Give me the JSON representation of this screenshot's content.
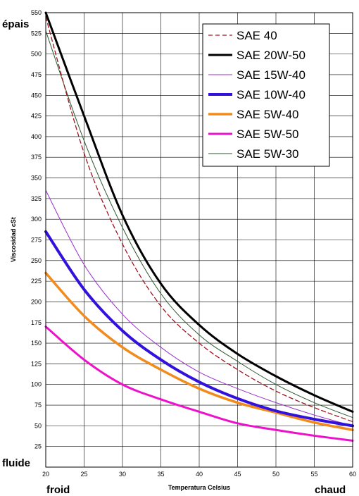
{
  "annotations": {
    "top_left": "épais",
    "bottom_left": "fluide",
    "x_left": "froid",
    "x_right": "chaud"
  },
  "chart_data": {
    "type": "line",
    "title": "",
    "xlabel": "Temperatura Celsius",
    "ylabel": "Viscosidad cSt",
    "xlim": [
      20,
      60
    ],
    "ylim": [
      0,
      550
    ],
    "xticks": [
      20,
      25,
      30,
      35,
      40,
      45,
      50,
      55,
      60
    ],
    "yticks": [
      25,
      50,
      75,
      100,
      125,
      150,
      175,
      200,
      225,
      250,
      275,
      300,
      325,
      350,
      375,
      400,
      425,
      450,
      475,
      500,
      525,
      550
    ],
    "grid": true,
    "legend_position": "top-right",
    "x": [
      20,
      25,
      30,
      35,
      40,
      45,
      50,
      55,
      60
    ],
    "series": [
      {
        "name": "SAE 40",
        "color": "#a0141e",
        "style": "dashed",
        "width": 1.3,
        "values": [
          545,
          380,
          270,
          195,
          150,
          118,
          92,
          72,
          55
        ]
      },
      {
        "name": "SAE 20W-50",
        "color": "#000000",
        "style": "solid",
        "width": 3,
        "values": [
          550,
          425,
          305,
          222,
          172,
          137,
          110,
          87,
          67
        ]
      },
      {
        "name": "SAE 15W-40",
        "color": "#9932cc",
        "style": "solid",
        "width": 1,
        "values": [
          335,
          245,
          185,
          145,
          115,
          95,
          78,
          63,
          50
        ]
      },
      {
        "name": "SAE 10W-40",
        "color": "#3311dd",
        "style": "solid",
        "width": 4,
        "values": [
          285,
          215,
          165,
          130,
          103,
          83,
          68,
          58,
          50
        ]
      },
      {
        "name": "SAE 5W-40",
        "color": "#f28a1c",
        "style": "solid",
        "width": 3.5,
        "values": [
          235,
          183,
          145,
          118,
          95,
          78,
          66,
          54,
          45
        ]
      },
      {
        "name": "SAE 5W-50",
        "color": "#ee11cc",
        "style": "solid",
        "width": 3,
        "values": [
          170,
          130,
          100,
          82,
          67,
          53,
          45,
          38,
          32
        ]
      },
      {
        "name": "SAE 5W-30",
        "color": "#2e5a2e",
        "style": "solid",
        "width": 1,
        "values": [
          528,
          395,
          290,
          210,
          160,
          128,
          100,
          78,
          60
        ]
      }
    ]
  }
}
